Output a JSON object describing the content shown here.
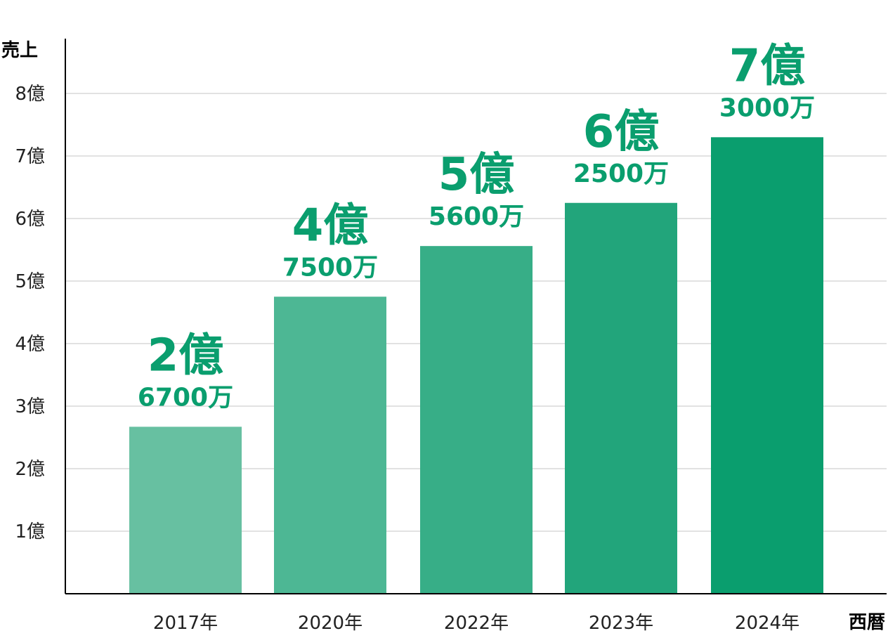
{
  "chart_data": {
    "type": "bar",
    "ylabel": "売上",
    "xlabel": "西暦",
    "ylim": [
      0,
      9
    ],
    "y_ticks": [
      {
        "value": 1,
        "label": "1億"
      },
      {
        "value": 2,
        "label": "2億"
      },
      {
        "value": 3,
        "label": "3億"
      },
      {
        "value": 4,
        "label": "4億"
      },
      {
        "value": 5,
        "label": "5億"
      },
      {
        "value": 6,
        "label": "6億"
      },
      {
        "value": 7,
        "label": "7億"
      },
      {
        "value": 8,
        "label": "8億"
      }
    ],
    "grid": true,
    "categories": [
      "2017年",
      "2020年",
      "2022年",
      "2023年",
      "2024年"
    ],
    "values": [
      2.67,
      4.75,
      5.56,
      6.25,
      7.3
    ],
    "data_labels": [
      {
        "main": "2億",
        "sub": "6700万"
      },
      {
        "main": "4億",
        "sub": "7500万"
      },
      {
        "main": "5億",
        "sub": "5600万"
      },
      {
        "main": "6億",
        "sub": "2500万"
      },
      {
        "main": "7億",
        "sub": "3000万"
      }
    ],
    "bar_colors": [
      "#67c0a1",
      "#4db794",
      "#37ae87",
      "#22a57b",
      "#0a9e6e"
    ],
    "label_color": "#0a9e6e",
    "grid_color": "#d9d9d9",
    "axis_color": "#000000"
  }
}
